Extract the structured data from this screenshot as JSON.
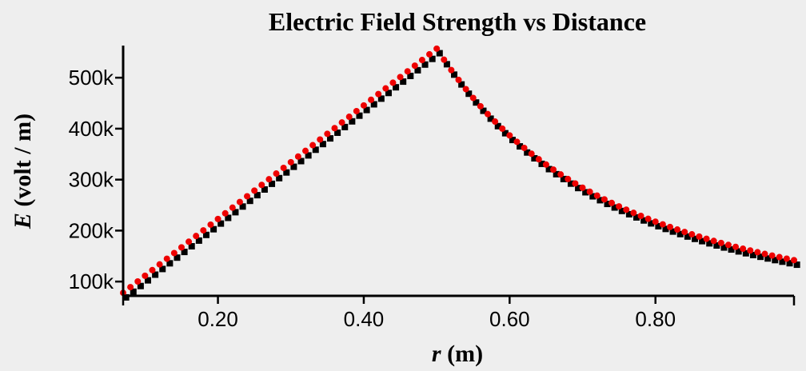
{
  "chart_data": {
    "type": "scatter",
    "title": "Electric Field Strength vs Distance",
    "xlabel_symbol": "r",
    "xlabel_unit": " (m)",
    "ylabel_symbol": "E",
    "ylabel_unit": " (volt / m)",
    "xlim": [
      0.07,
      0.99
    ],
    "ylim": [
      72000,
      563000
    ],
    "x_ticks": [
      0.2,
      0.4,
      0.6,
      0.8
    ],
    "x_tick_labels": [
      "0.20",
      "0.40",
      "0.60",
      "0.80"
    ],
    "y_ticks": [
      100000,
      200000,
      300000,
      400000,
      500000
    ],
    "y_tick_labels": [
      "100k",
      "200k",
      "300k",
      "400k",
      "500k"
    ],
    "grid": false,
    "legend": "none",
    "x_range": [
      0.07,
      0.99
    ],
    "x_step": 0.01,
    "peak": {
      "x": 0.5,
      "y": 557000
    },
    "series": [
      {
        "marker": "square",
        "color": "#000000",
        "x_offset": 0.004,
        "y_offset": -9000
      },
      {
        "marker": "circle",
        "color": "#ee0000",
        "x_offset": 0.0,
        "y_offset": 0
      }
    ]
  }
}
